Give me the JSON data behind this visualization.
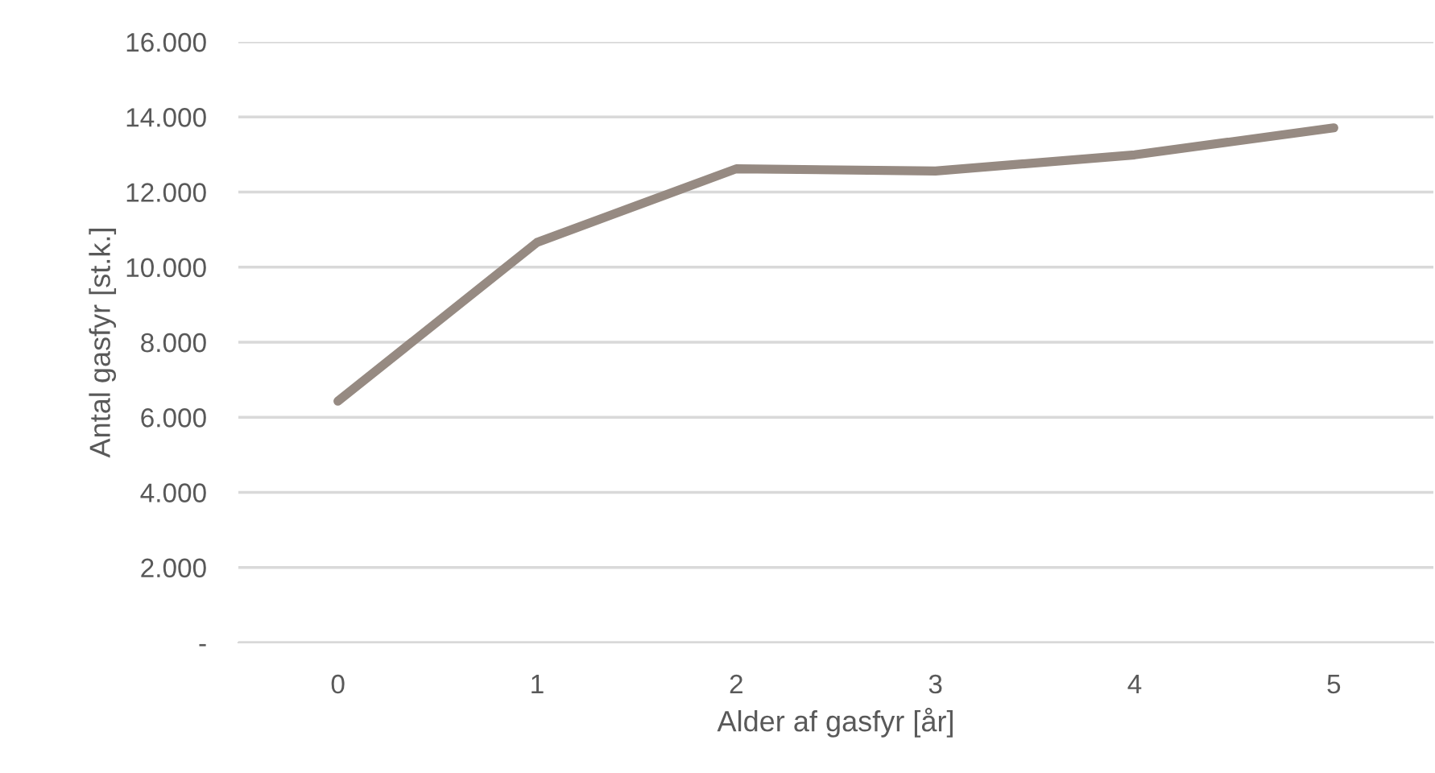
{
  "chart_data": {
    "type": "line",
    "xlabel": "Alder af gasfyr [år]",
    "ylabel": "Antal gasfyr [st.k.]",
    "categories": [
      "0",
      "1",
      "2",
      "3",
      "4",
      "5"
    ],
    "series": [
      {
        "color": "#968a82",
        "values": [
          6430,
          10660,
          12620,
          12560,
          12990,
          13710
        ]
      }
    ],
    "ylim": [
      0,
      16000
    ],
    "yticks": [
      {
        "value": 0,
        "label": "-"
      },
      {
        "value": 2000,
        "label": "2.000"
      },
      {
        "value": 4000,
        "label": "4.000"
      },
      {
        "value": 6000,
        "label": "6.000"
      },
      {
        "value": 8000,
        "label": "8.000"
      },
      {
        "value": 10000,
        "label": "10.000"
      },
      {
        "value": 12000,
        "label": "12.000"
      },
      {
        "value": 14000,
        "label": "14.000"
      },
      {
        "value": 16000,
        "label": "16.000"
      }
    ],
    "grid": "y",
    "legend": false,
    "marker": "none",
    "line_style": "solid"
  }
}
